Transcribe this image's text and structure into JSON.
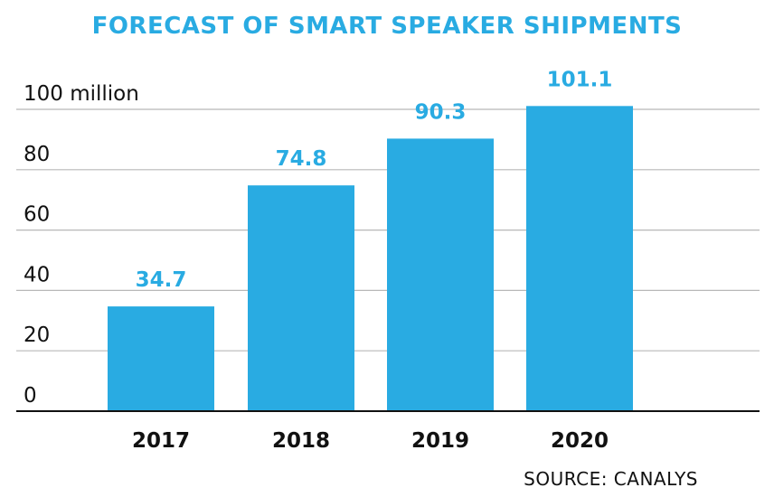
{
  "chart_data": {
    "type": "bar",
    "title": "FORECAST OF SMART SPEAKER SHIPMENTS",
    "categories": [
      "2017",
      "2018",
      "2019",
      "2020"
    ],
    "values": [
      34.7,
      74.8,
      90.3,
      101.1
    ],
    "value_labels": [
      "34.7",
      "74.8",
      "90.3",
      "101.1"
    ],
    "ylim": [
      0,
      100
    ],
    "yticks": [
      0,
      20,
      40,
      60,
      80,
      100
    ],
    "ytick_labels": [
      "0",
      "20",
      "40",
      "60",
      "80",
      "100 million"
    ],
    "grid": true,
    "legend": "none",
    "bar_color": "#29abe2",
    "source": "SOURCE: CANALYS"
  }
}
